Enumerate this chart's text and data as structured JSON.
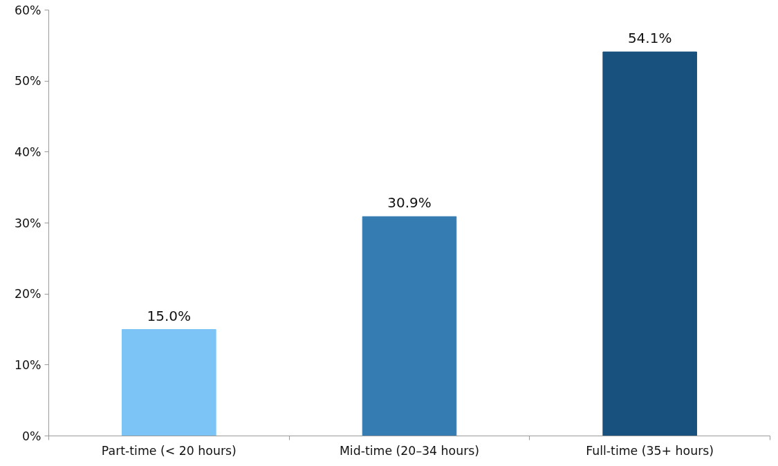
{
  "chart_data": {
    "type": "bar",
    "categories": [
      "Part-time (< 20 hours)",
      "Mid-time (20–34 hours)",
      "Full-time (35+ hours)"
    ],
    "values": [
      15.0,
      30.9,
      54.1
    ],
    "colors": [
      "#7cc4f5",
      "#357cb2",
      "#18507e"
    ],
    "value_labels": [
      "15.0%",
      "30.9%",
      "54.1%"
    ],
    "ylim": [
      0,
      60
    ],
    "yticks": [
      {
        "value": 0,
        "label": "0%"
      },
      {
        "value": 10,
        "label": "10%"
      },
      {
        "value": 20,
        "label": "20%"
      },
      {
        "value": 30,
        "label": "30%"
      },
      {
        "value": 40,
        "label": "40%"
      },
      {
        "value": 50,
        "label": "50%"
      },
      {
        "value": 60,
        "label": "60%"
      }
    ],
    "grid": false
  }
}
